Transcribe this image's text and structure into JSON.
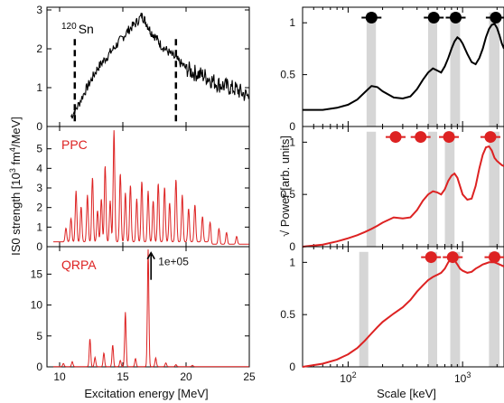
{
  "chart_data": [
    {
      "type": "line",
      "layout": "left column, three stacked panels sharing the x axis",
      "xlabel": "Excitation energy [MeV]",
      "ylabel_main": "IS0 strength [10",
      "ylabel_sup1": "3",
      "ylabel_mid": " fm",
      "ylabel_sup2": "4",
      "ylabel_tail": "/MeV]",
      "xlim": [
        9,
        25
      ],
      "xticks": [
        "10",
        "15",
        "20",
        "25"
      ],
      "panels": [
        {
          "label_sup": "120",
          "label": "Sn",
          "color": "#000000",
          "ylim": [
            0,
            3
          ],
          "yticks": [
            "0",
            "1",
            "2",
            "3"
          ],
          "series": {
            "name": "data",
            "x": [
              10.9,
              11.4,
              12.0,
              12.5,
              13.0,
              13.5,
              14.0,
              14.5,
              15.0,
              15.5,
              16.0,
              16.5,
              16.8,
              17.2,
              17.6,
              18.0,
              18.5,
              19.0,
              19.5,
              20.0,
              20.5,
              21.0,
              21.5,
              22.0,
              22.5,
              23.0,
              23.5,
              24.0,
              24.5,
              25.0
            ],
            "y": [
              0.25,
              0.5,
              0.9,
              1.2,
              1.5,
              1.7,
              1.9,
              2.1,
              2.3,
              2.5,
              2.65,
              2.85,
              2.7,
              2.45,
              2.3,
              2.1,
              1.95,
              1.8,
              1.65,
              1.5,
              1.4,
              1.35,
              1.3,
              1.2,
              1.1,
              1.05,
              1.0,
              0.95,
              0.85,
              0.75
            ]
          },
          "dashed_markers_x": [
            11.2,
            19.2
          ]
        },
        {
          "label": "PPC",
          "color": "#dd2222",
          "ylim": [
            0,
            6
          ],
          "yticks": [
            "0",
            "1",
            "2",
            "3",
            "4",
            "5"
          ],
          "peaks": [
            {
              "x": 10.5,
              "y": 0.7
            },
            {
              "x": 10.9,
              "y": 1.2
            },
            {
              "x": 11.3,
              "y": 2.6
            },
            {
              "x": 11.7,
              "y": 1.8
            },
            {
              "x": 12.2,
              "y": 2.4
            },
            {
              "x": 12.6,
              "y": 3.3
            },
            {
              "x": 13.0,
              "y": 1.6
            },
            {
              "x": 13.3,
              "y": 2.2
            },
            {
              "x": 13.6,
              "y": 3.9
            },
            {
              "x": 14.0,
              "y": 2.1
            },
            {
              "x": 14.3,
              "y": 5.7
            },
            {
              "x": 14.8,
              "y": 3.5
            },
            {
              "x": 15.2,
              "y": 2.5
            },
            {
              "x": 15.6,
              "y": 2.9
            },
            {
              "x": 16.1,
              "y": 2.2
            },
            {
              "x": 16.5,
              "y": 3.1
            },
            {
              "x": 17.0,
              "y": 2.6
            },
            {
              "x": 17.4,
              "y": 2.1
            },
            {
              "x": 17.8,
              "y": 3.0
            },
            {
              "x": 18.3,
              "y": 2.8
            },
            {
              "x": 18.7,
              "y": 2.0
            },
            {
              "x": 19.2,
              "y": 3.2
            },
            {
              "x": 19.7,
              "y": 2.4
            },
            {
              "x": 20.2,
              "y": 1.7
            },
            {
              "x": 20.7,
              "y": 1.9
            },
            {
              "x": 21.3,
              "y": 1.3
            },
            {
              "x": 21.9,
              "y": 1.0
            },
            {
              "x": 22.6,
              "y": 0.8
            },
            {
              "x": 23.2,
              "y": 0.6
            },
            {
              "x": 24.0,
              "y": 0.4
            }
          ]
        },
        {
          "label": "QRPA",
          "color": "#dd2222",
          "ylim": [
            0,
            19
          ],
          "yticks": [
            "0",
            "5",
            "10",
            "15"
          ],
          "peaks": [
            {
              "x": 10.3,
              "y": 0.5
            },
            {
              "x": 11.0,
              "y": 0.8
            },
            {
              "x": 12.4,
              "y": 4.5
            },
            {
              "x": 12.8,
              "y": 1.5
            },
            {
              "x": 13.5,
              "y": 2.2
            },
            {
              "x": 14.2,
              "y": 3.5
            },
            {
              "x": 14.8,
              "y": 1.0
            },
            {
              "x": 15.2,
              "y": 8.8
            },
            {
              "x": 16.0,
              "y": 1.3
            },
            {
              "x": 17.0,
              "y": 19.0
            },
            {
              "x": 17.6,
              "y": 1.4
            },
            {
              "x": 18.4,
              "y": 0.6
            },
            {
              "x": 19.2,
              "y": 0.3
            },
            {
              "x": 20.5,
              "y": 0.2
            }
          ],
          "annotation": {
            "text": "1e+05",
            "x": 17.8,
            "y": 17
          }
        }
      ]
    },
    {
      "type": "line",
      "layout": "right column, three stacked panels sharing a logarithmic x axis",
      "xlabel": "Scale [keV]",
      "ylabel": "√ Power [arb. units]",
      "xscale": "log",
      "xlim": [
        40,
        2300
      ],
      "xticks": [
        {
          "value": 100,
          "base": "10",
          "exp": "2"
        },
        {
          "value": 1000,
          "base": "10",
          "exp": "3"
        }
      ],
      "ylim": [
        0,
        1.15
      ],
      "yticks": [
        "0",
        "0.5",
        "1"
      ],
      "panels": [
        {
          "color": "#000000",
          "bands": [
            [
              145,
              175
            ],
            [
              500,
              600
            ],
            [
              780,
              950
            ],
            [
              1700,
              2100
            ]
          ],
          "dots": [
            160,
            560,
            870,
            1950
          ],
          "curve": {
            "x": [
              40,
              60,
              80,
              100,
              120,
              140,
              160,
              180,
              200,
              250,
              300,
              350,
              400,
              450,
              500,
              550,
              600,
              650,
              700,
              750,
              800,
              850,
              900,
              950,
              1000,
              1100,
              1200,
              1300,
              1400,
              1500,
              1600,
              1700,
              1800,
              1900,
              2000,
              2100,
              2200,
              2300
            ],
            "y": [
              0.16,
              0.16,
              0.18,
              0.21,
              0.26,
              0.33,
              0.39,
              0.38,
              0.34,
              0.28,
              0.27,
              0.29,
              0.36,
              0.45,
              0.52,
              0.56,
              0.54,
              0.52,
              0.58,
              0.66,
              0.75,
              0.82,
              0.86,
              0.84,
              0.8,
              0.7,
              0.62,
              0.6,
              0.66,
              0.75,
              0.86,
              0.94,
              0.98,
              0.99,
              0.95,
              0.88,
              0.8,
              0.75
            ]
          }
        },
        {
          "color": "#dd2222",
          "bands": [
            [
              145,
              175
            ],
            [
              500,
              600
            ],
            [
              700,
              850
            ],
            [
              1700,
              2100
            ]
          ],
          "dots": [
            260,
            430,
            760,
            1750
          ],
          "curve": {
            "x": [
              40,
              60,
              80,
              100,
              120,
              140,
              160,
              180,
              200,
              250,
              300,
              350,
              400,
              450,
              500,
              550,
              600,
              650,
              700,
              750,
              800,
              850,
              900,
              950,
              1000,
              1100,
              1200,
              1300,
              1400,
              1500,
              1600,
              1700,
              1800,
              1900,
              2000,
              2100,
              2200,
              2300
            ],
            "y": [
              0.0,
              0.02,
              0.05,
              0.08,
              0.11,
              0.14,
              0.17,
              0.2,
              0.23,
              0.28,
              0.27,
              0.28,
              0.35,
              0.44,
              0.5,
              0.53,
              0.52,
              0.5,
              0.55,
              0.63,
              0.68,
              0.7,
              0.66,
              0.58,
              0.5,
              0.45,
              0.46,
              0.58,
              0.75,
              0.88,
              0.95,
              0.96,
              0.92,
              0.85,
              0.82,
              0.8,
              0.78,
              0.77
            ]
          }
        },
        {
          "color": "#dd2222",
          "bands": [
            [
              125,
              150
            ],
            [
              500,
              600
            ],
            [
              780,
              950
            ],
            [
              1700,
              2100
            ]
          ],
          "dots": [
            530,
            820,
            1900
          ],
          "curve": {
            "x": [
              40,
              60,
              80,
              100,
              120,
              140,
              160,
              180,
              200,
              250,
              300,
              350,
              400,
              450,
              500,
              550,
              600,
              650,
              700,
              750,
              800,
              850,
              900,
              950,
              1000,
              1100,
              1200,
              1300,
              1400,
              1500,
              1600,
              1700,
              1800,
              1900,
              2000,
              2100,
              2200,
              2300
            ],
            "y": [
              0.0,
              0.03,
              0.07,
              0.12,
              0.18,
              0.25,
              0.32,
              0.38,
              0.43,
              0.51,
              0.57,
              0.64,
              0.72,
              0.78,
              0.83,
              0.86,
              0.88,
              0.9,
              0.94,
              1.0,
              1.04,
              1.02,
              0.98,
              0.94,
              0.92,
              0.9,
              0.91,
              0.94,
              0.96,
              0.98,
              0.99,
              1.0,
              1.0,
              1.0,
              0.99,
              0.98,
              0.97,
              0.96
            ]
          }
        }
      ]
    }
  ]
}
